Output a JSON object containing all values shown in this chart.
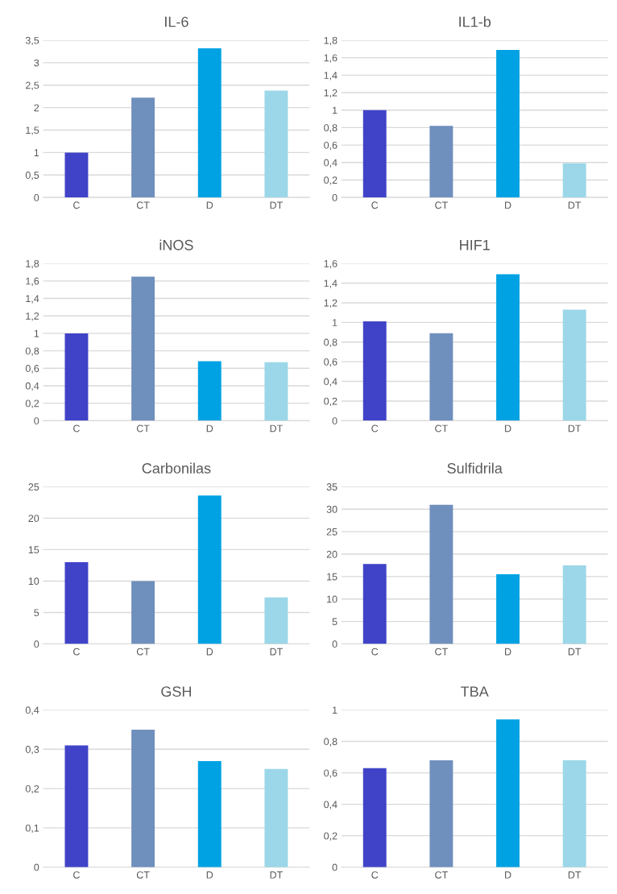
{
  "chart_data": [
    {
      "type": "bar",
      "title": "IL-6",
      "categories": [
        "C",
        "CT",
        "D",
        "DT"
      ],
      "values": [
        1,
        2.22,
        3.32,
        2.38
      ],
      "colors": [
        "#4043c8",
        "#6f8fbd",
        "#00a2e3",
        "#9bd7e8"
      ],
      "ylim": [
        0,
        3.5
      ],
      "yticks": [
        0,
        {
          "value": 0.5,
          "label": "0,5"
        },
        1,
        {
          "value": 1.5,
          "label": "1,5"
        },
        2,
        {
          "value": 2.5,
          "label": "2,5"
        },
        3,
        {
          "value": 3.5,
          "label": "3,5"
        }
      ],
      "grid": "y",
      "legend": false
    },
    {
      "type": "bar",
      "title": "IL1-b",
      "categories": [
        "C",
        "CT",
        "D",
        "DT"
      ],
      "values": [
        1.0,
        0.82,
        1.69,
        0.39
      ],
      "colors": [
        "#4043c8",
        "#6f8fbd",
        "#00a2e3",
        "#9bd7e8"
      ],
      "ylim": [
        0,
        1.8
      ],
      "yticks": [
        0,
        {
          "value": 0.2,
          "label": "0,2"
        },
        {
          "value": 0.4,
          "label": "0,4"
        },
        {
          "value": 0.6,
          "label": "0,6"
        },
        {
          "value": 0.8,
          "label": "0,8"
        },
        1,
        {
          "value": 1.2,
          "label": "1,2"
        },
        {
          "value": 1.4,
          "label": "1,4"
        },
        {
          "value": 1.6,
          "label": "1,6"
        },
        {
          "value": 1.8,
          "label": "1,8"
        }
      ],
      "grid": "y",
      "legend": false
    },
    {
      "type": "bar",
      "title": "iNOS",
      "categories": [
        "C",
        "CT",
        "D",
        "DT"
      ],
      "values": [
        1.0,
        1.65,
        0.68,
        0.67
      ],
      "colors": [
        "#4043c8",
        "#6f8fbd",
        "#00a2e3",
        "#9bd7e8"
      ],
      "ylim": [
        0,
        1.8
      ],
      "yticks": [
        0,
        {
          "value": 0.2,
          "label": "0,2"
        },
        {
          "value": 0.4,
          "label": "0,4"
        },
        {
          "value": 0.6,
          "label": "0,6"
        },
        {
          "value": 0.8,
          "label": "0,8"
        },
        1,
        {
          "value": 1.2,
          "label": "1,2"
        },
        {
          "value": 1.4,
          "label": "1,4"
        },
        {
          "value": 1.6,
          "label": "1,6"
        },
        {
          "value": 1.8,
          "label": "1,8"
        }
      ],
      "grid": "y",
      "legend": false
    },
    {
      "type": "bar",
      "title": "HIF1",
      "categories": [
        "C",
        "CT",
        "D",
        "DT"
      ],
      "values": [
        1.01,
        0.89,
        1.49,
        1.13
      ],
      "colors": [
        "#4043c8",
        "#6f8fbd",
        "#00a2e3",
        "#9bd7e8"
      ],
      "ylim": [
        0,
        1.6
      ],
      "yticks": [
        0,
        {
          "value": 0.2,
          "label": "0,2"
        },
        {
          "value": 0.4,
          "label": "0,4"
        },
        {
          "value": 0.6,
          "label": "0,6"
        },
        {
          "value": 0.8,
          "label": "0,8"
        },
        1,
        {
          "value": 1.2,
          "label": "1,2"
        },
        {
          "value": 1.4,
          "label": "1,4"
        },
        {
          "value": 1.6,
          "label": "1,6"
        }
      ],
      "grid": "y",
      "legend": false
    },
    {
      "type": "bar",
      "title": "Carbonilas",
      "categories": [
        "C",
        "CT",
        "D",
        "DT"
      ],
      "values": [
        13,
        10,
        23.6,
        7.4
      ],
      "colors": [
        "#4043c8",
        "#6f8fbd",
        "#00a2e3",
        "#9bd7e8"
      ],
      "ylim": [
        0,
        25
      ],
      "yticks": [
        0,
        5,
        10,
        15,
        20,
        25
      ],
      "grid": "y",
      "legend": false
    },
    {
      "type": "bar",
      "title": "Sulfidrila",
      "categories": [
        "C",
        "CT",
        "D",
        "DT"
      ],
      "values": [
        17.8,
        31,
        15.5,
        17.5
      ],
      "colors": [
        "#4043c8",
        "#6f8fbd",
        "#00a2e3",
        "#9bd7e8"
      ],
      "ylim": [
        0,
        35
      ],
      "yticks": [
        0,
        5,
        10,
        15,
        20,
        25,
        30,
        35
      ],
      "grid": "y",
      "legend": false
    },
    {
      "type": "bar",
      "title": "GSH",
      "categories": [
        "C",
        "CT",
        "D",
        "DT"
      ],
      "values": [
        0.31,
        0.35,
        0.27,
        0.25
      ],
      "colors": [
        "#4043c8",
        "#6f8fbd",
        "#00a2e3",
        "#9bd7e8"
      ],
      "ylim": [
        0,
        0.4
      ],
      "yticks": [
        0,
        {
          "value": 0.1,
          "label": "0,1"
        },
        {
          "value": 0.2,
          "label": "0,2"
        },
        {
          "value": 0.3,
          "label": "0,3"
        },
        {
          "value": 0.4,
          "label": "0,4"
        }
      ],
      "grid": "y",
      "legend": false
    },
    {
      "type": "bar",
      "title": "TBA",
      "categories": [
        "C",
        "CT",
        "D",
        "DT"
      ],
      "values": [
        0.63,
        0.68,
        0.94,
        0.68
      ],
      "colors": [
        "#4043c8",
        "#6f8fbd",
        "#00a2e3",
        "#9bd7e8"
      ],
      "ylim": [
        0,
        1
      ],
      "yticks": [
        0,
        {
          "value": 0.2,
          "label": "0,2"
        },
        {
          "value": 0.4,
          "label": "0,4"
        },
        {
          "value": 0.6,
          "label": "0,6"
        },
        {
          "value": 0.8,
          "label": "0,8"
        },
        1
      ],
      "grid": "y",
      "legend": false
    }
  ]
}
